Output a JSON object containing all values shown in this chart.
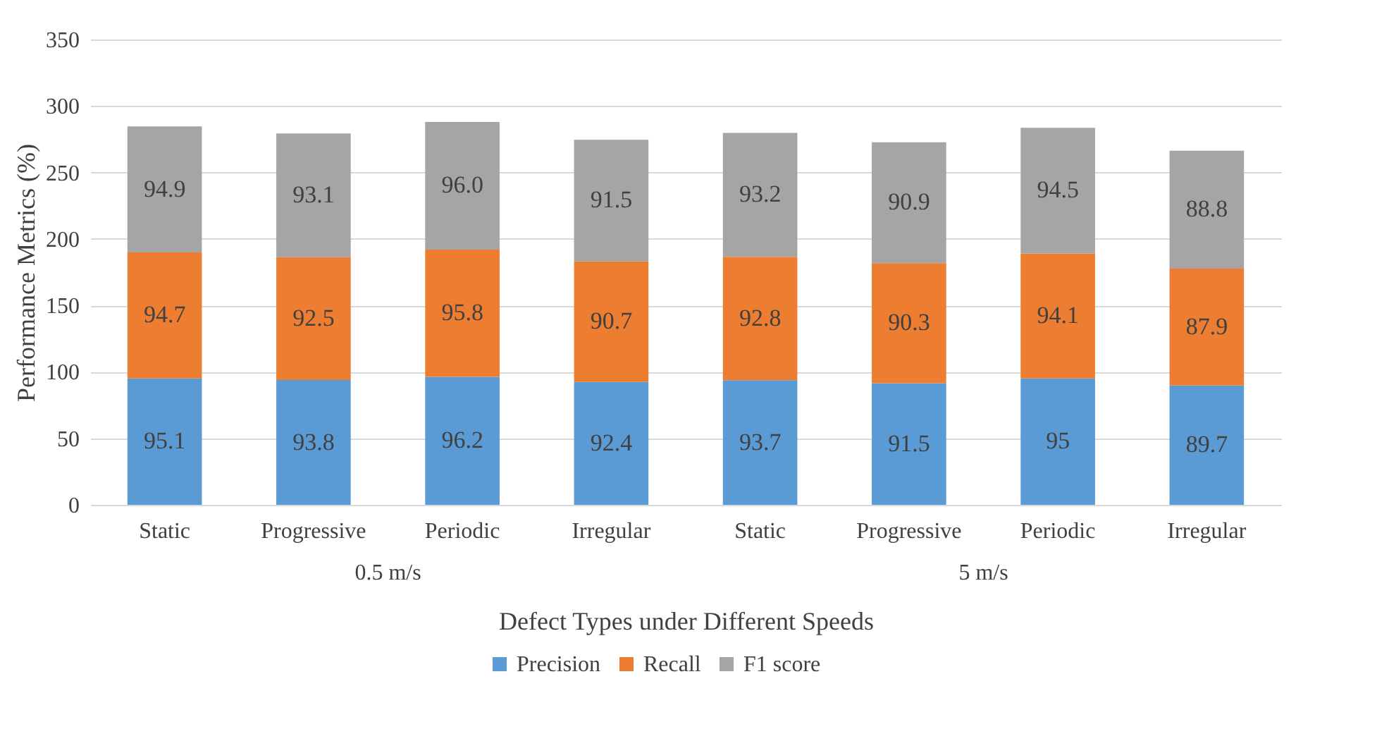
{
  "chart_data": {
    "type": "bar",
    "stacked": true,
    "xlabel": "Defect Types under Different Speeds",
    "ylabel": "Performance Metrics (%)",
    "categories": [
      "Static",
      "Progressive",
      "Periodic",
      "Irregular",
      "Static",
      "Progressive",
      "Periodic",
      "Irregular"
    ],
    "annotations": [
      "0.5 m/s",
      "5 m/s"
    ],
    "series": [
      {
        "name": "Precision",
        "color": "#5b9bd5",
        "values": [
          95.1,
          93.8,
          96.2,
          92.4,
          93.7,
          91.5,
          95,
          89.7
        ],
        "value_labels": [
          "95.1",
          "93.8",
          "96.2",
          "92.4",
          "93.7",
          "91.5",
          "95",
          "89.7"
        ]
      },
      {
        "name": "Recall",
        "color": "#ed7d31",
        "values": [
          94.7,
          92.5,
          95.8,
          90.7,
          92.8,
          90.3,
          94.1,
          87.9
        ],
        "value_labels": [
          "94.7",
          "92.5",
          "95.8",
          "90.7",
          "92.8",
          "90.3",
          "94.1",
          "87.9"
        ]
      },
      {
        "name": "F1 score",
        "color": "#a5a5a5",
        "values": [
          94.9,
          93.1,
          96.0,
          91.5,
          93.2,
          90.9,
          94.5,
          88.8
        ],
        "value_labels": [
          "94.9",
          "93.1",
          "96.0",
          "91.5",
          "93.2",
          "90.9",
          "94.5",
          "88.8"
        ]
      }
    ],
    "ylim": [
      0,
      350
    ],
    "yticks": [
      0,
      50,
      100,
      150,
      200,
      250,
      300,
      350
    ],
    "grid": "y",
    "legend": "bottom"
  }
}
